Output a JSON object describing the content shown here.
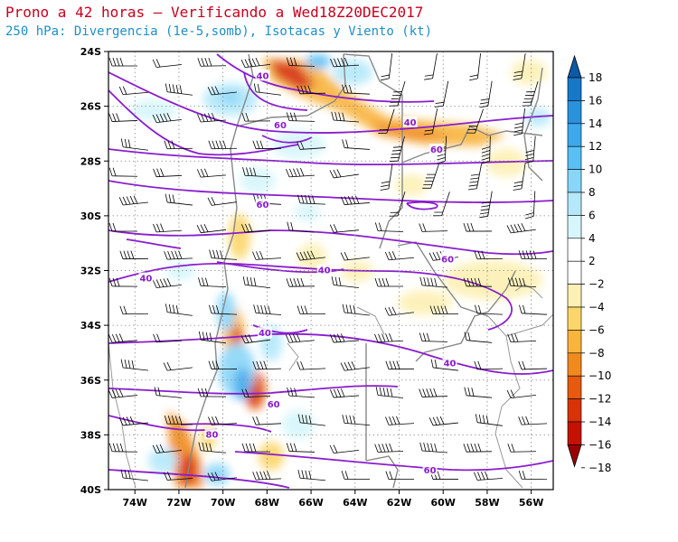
{
  "title": "Prono a 42 horas – Verificando a Wed18Z20DEC2017",
  "subtitle": "250 hPa: Divergencia (1e-5,somb), Isotacas y Viento (kt)",
  "map": {
    "lat_labels": [
      "24S",
      "26S",
      "28S",
      "30S",
      "32S",
      "34S",
      "36S",
      "38S",
      "40S"
    ],
    "lon_labels": [
      "74W",
      "72W",
      "70W",
      "68W",
      "66W",
      "64W",
      "62W",
      "60W",
      "58W",
      "56W"
    ],
    "lat_range": [
      -40,
      -24
    ],
    "lon_range": [
      -75.2,
      -55.0
    ],
    "grid": true,
    "isotach_color": "#8a1ccf",
    "isotach_labels": [
      {
        "text": "40",
        "lon": -68.2,
        "lat": -24.9
      },
      {
        "text": "40",
        "lon": -61.5,
        "lat": -26.6
      },
      {
        "text": "60",
        "lon": -67.4,
        "lat": -26.7
      },
      {
        "text": "60",
        "lon": -60.3,
        "lat": -27.6
      },
      {
        "text": "60",
        "lon": -68.2,
        "lat": -29.6
      },
      {
        "text": "60",
        "lon": -59.8,
        "lat": -31.6
      },
      {
        "text": "40",
        "lon": -65.4,
        "lat": -32.0
      },
      {
        "text": "40",
        "lon": -73.5,
        "lat": -32.3
      },
      {
        "text": "40",
        "lon": -68.1,
        "lat": -34.3
      },
      {
        "text": "40",
        "lon": -59.7,
        "lat": -35.4
      },
      {
        "text": "60",
        "lon": -67.7,
        "lat": -36.9
      },
      {
        "text": "80",
        "lon": -70.5,
        "lat": -38.0
      },
      {
        "text": "60",
        "lon": -60.6,
        "lat": -39.3
      }
    ]
  },
  "colorbar": {
    "labels": [
      "18",
      "16",
      "14",
      "12",
      "10",
      "8",
      "6",
      "4",
      "2",
      "−2",
      "−4",
      "−6",
      "−8",
      "−10",
      "−12",
      "−14",
      "−16",
      "−18"
    ],
    "colors": [
      "#0a5aa8",
      "#1878c8",
      "#2a92dc",
      "#3ea8ec",
      "#5ac0f4",
      "#8ad6f8",
      "#b4e8fa",
      "#d6f6fb",
      "#ffffff",
      "#ffffff",
      "#fdf0b4",
      "#fbd66a",
      "#f8b43c",
      "#f08a1e",
      "#e65a10",
      "#d83208",
      "#c41204",
      "#9a0000"
    ]
  }
}
